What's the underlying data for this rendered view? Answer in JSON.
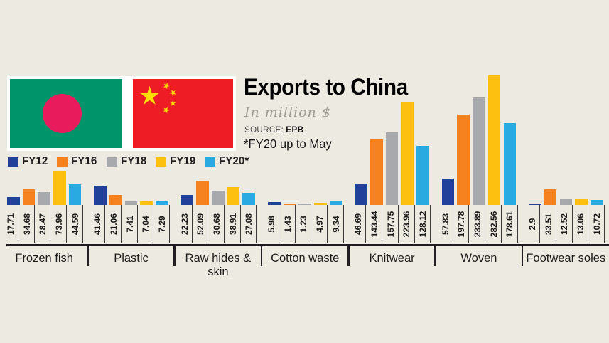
{
  "header": {
    "title": "Exports to China",
    "subtitle": "In million $",
    "source_label": "SOURCE:",
    "source_value": "EPB",
    "footnote": "*FY20 up to May"
  },
  "flags": {
    "bangladesh": {
      "name": "Bangladesh flag",
      "field_color": "#00946a",
      "disc_color": "#e81c5c"
    },
    "china": {
      "name": "China flag",
      "field_color": "#ee1c25",
      "star_color": "#ffde00"
    }
  },
  "legend": [
    {
      "label": "FY12",
      "color": "#21409a"
    },
    {
      "label": "FY16",
      "color": "#f5821f"
    },
    {
      "label": "FY18",
      "color": "#a7a9ac"
    },
    {
      "label": "FY19",
      "color": "#fdc010"
    },
    {
      "label": "FY20*",
      "color": "#29abe2"
    }
  ],
  "chart_data": {
    "type": "bar",
    "title": "Exports to China",
    "unit": "million $",
    "categories": [
      "Frozen fish",
      "Plastic",
      "Raw hides & skin",
      "Cotton waste",
      "Knitwear",
      "Woven",
      "Footwear soles"
    ],
    "series": [
      {
        "name": "FY12",
        "color": "#21409a",
        "values": [
          17.71,
          41.46,
          22.23,
          5.98,
          46.69,
          57.83,
          2.9
        ]
      },
      {
        "name": "FY16",
        "color": "#f5821f",
        "values": [
          34.68,
          21.06,
          52.09,
          1.43,
          143.44,
          197.78,
          33.51
        ]
      },
      {
        "name": "FY18",
        "color": "#a7a9ac",
        "values": [
          28.47,
          7.41,
          30.68,
          1.23,
          157.75,
          233.89,
          12.52
        ]
      },
      {
        "name": "FY19",
        "color": "#fdc010",
        "values": [
          73.96,
          7.04,
          38.91,
          4.97,
          223.96,
          282.56,
          13.06
        ]
      },
      {
        "name": "FY20*",
        "color": "#29abe2",
        "values": [
          44.59,
          7.29,
          27.08,
          9.34,
          128.12,
          178.61,
          10.72
        ]
      }
    ],
    "ylim": [
      0,
      283
    ],
    "grid": false,
    "legend_position": "top-left",
    "value_labels_shown": true
  }
}
